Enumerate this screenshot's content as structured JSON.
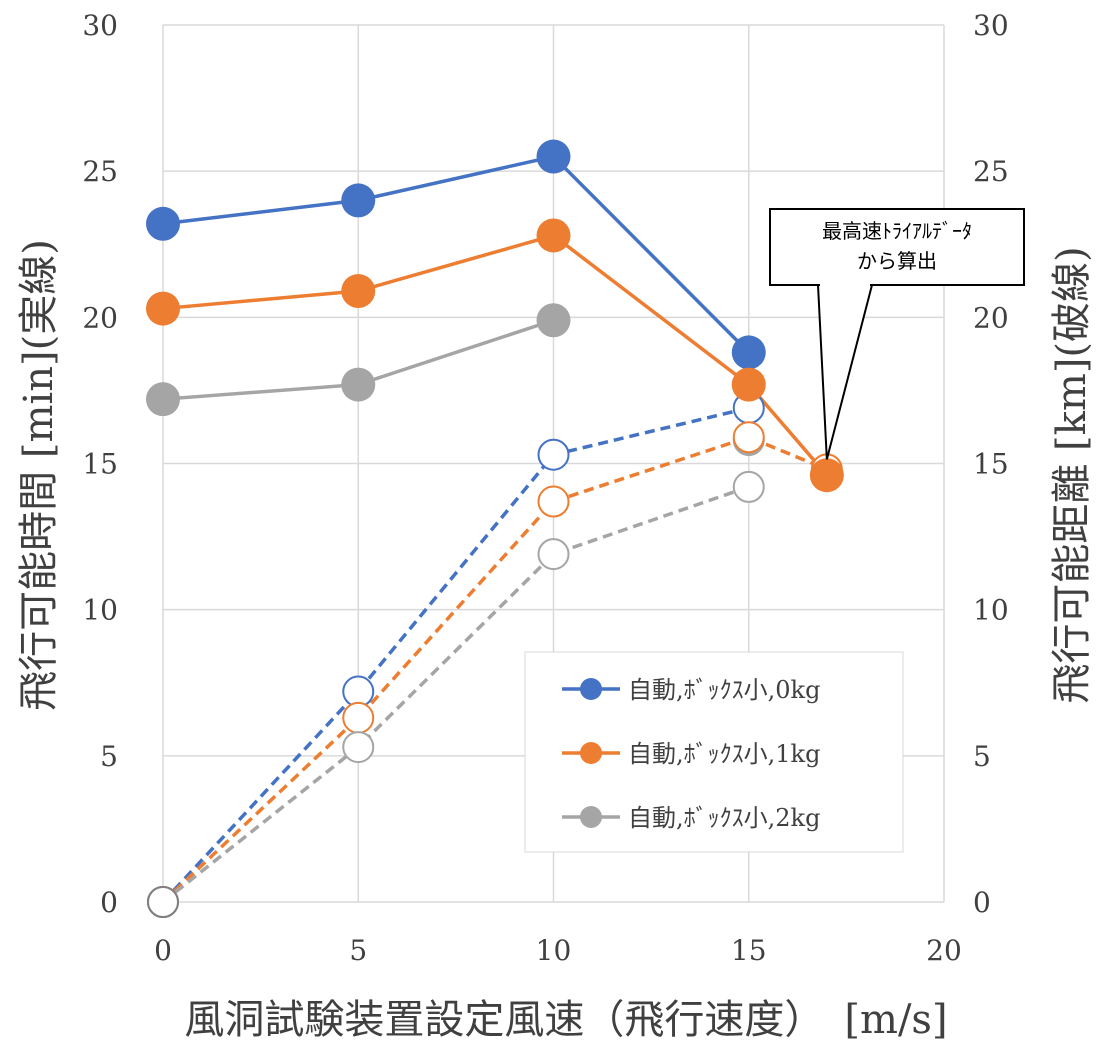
{
  "chart_data": {
    "type": "line",
    "title": "",
    "xlabel": "風洞試験装置設定風速（飛行速度）　[m/s]",
    "ylabel_left": "飛行可能時間 [min](実線)",
    "ylabel_right": "飛行可能距離 [km](破線)",
    "xlim": [
      0,
      20
    ],
    "ylim": [
      0,
      30
    ],
    "x_ticks": [
      "0",
      "5",
      "10",
      "15",
      "20"
    ],
    "y_ticks": [
      "0",
      "5",
      "10",
      "15",
      "20",
      "25",
      "30"
    ],
    "y_ticks_right": [
      "0",
      "5",
      "10",
      "15",
      "20",
      "25",
      "30"
    ],
    "grid": true,
    "legend_position": "bottom-right",
    "legend": [
      "自動,ﾎﾞｯｸｽ小,0kg",
      "自動,ﾎﾞｯｸｽ小,1kg",
      "自動,ﾎﾞｯｸｽ小,2kg"
    ],
    "series": [
      {
        "name": "自動,ﾎﾞｯｸｽ小,0kg",
        "color": "#4472C4",
        "style": "solid",
        "axis": "left",
        "x": [
          0,
          5,
          10,
          15
        ],
        "y": [
          23.2,
          24.0,
          25.5,
          18.8
        ]
      },
      {
        "name": "自動,ﾎﾞｯｸｽ小,1kg",
        "color": "#ED7D31",
        "style": "solid",
        "axis": "left",
        "x": [
          0,
          5,
          10,
          15,
          17
        ],
        "y": [
          20.3,
          20.9,
          22.8,
          17.7,
          14.6
        ]
      },
      {
        "name": "自動,ﾎﾞｯｸｽ小,2kg",
        "color": "#A5A5A5",
        "style": "solid",
        "axis": "left",
        "x": [
          0,
          5,
          10
        ],
        "y": [
          17.2,
          17.7,
          19.9
        ]
      },
      {
        "name": "",
        "color": "#4472C4",
        "style": "dashed",
        "axis": "right",
        "x": [
          0,
          5,
          10,
          15
        ],
        "y": [
          0,
          7.2,
          15.3,
          16.9
        ]
      },
      {
        "name": "",
        "color": "#ED7D31",
        "style": "dashed",
        "axis": "right",
        "x": [
          0,
          5,
          10,
          15,
          17
        ],
        "y": [
          0,
          6.3,
          13.7,
          15.9,
          14.8
        ]
      },
      {
        "name": "",
        "color": "#A5A5A5",
        "style": "dashed",
        "axis": "right",
        "x": [
          0,
          5,
          10,
          15
        ],
        "y": [
          0,
          5.3,
          11.9,
          14.2
        ]
      }
    ],
    "extra_points": [
      {
        "x": 15,
        "y": 15.8,
        "color": "#A5A5A5",
        "axis": "left"
      }
    ],
    "annotation": {
      "lines": [
        "最高速ﾄﾗｲｱﾙﾃﾞｰﾀ",
        "から算出"
      ],
      "x": 17,
      "y": 14.8
    }
  }
}
